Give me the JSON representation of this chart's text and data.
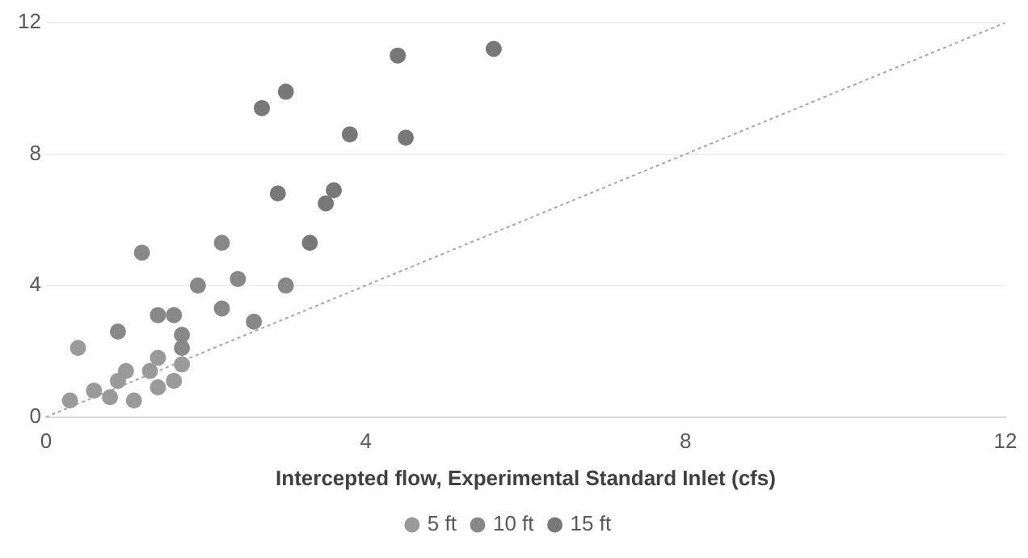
{
  "chart_data": {
    "type": "scatter",
    "xlabel": "Intercepted flow, Experimental Standard Inlet (cfs)",
    "xlim": [
      0,
      12
    ],
    "xticks": [
      0,
      4,
      8,
      12
    ],
    "ylim": [
      0,
      12
    ],
    "yticks": [
      0,
      4,
      8,
      12
    ],
    "grid": "y",
    "legend": "bottom",
    "marker": "circle",
    "series": [
      {
        "name": "5 ft",
        "color": "#9a9a9a",
        "x": [
          0.3,
          0.6,
          0.8,
          1.1,
          1.4,
          1.6,
          1.0,
          1.3,
          0.9,
          0.4,
          1.7,
          1.4
        ],
        "values": [
          0.5,
          0.8,
          0.6,
          0.5,
          0.9,
          1.1,
          1.4,
          1.4,
          1.1,
          2.1,
          1.6,
          1.8
        ]
      },
      {
        "name": "10 ft",
        "color": "#888888",
        "x": [
          0.9,
          1.7,
          1.7,
          1.4,
          1.6,
          2.2,
          2.6,
          1.9,
          2.4,
          3.0,
          1.2,
          2.2
        ],
        "values": [
          2.6,
          2.5,
          2.1,
          3.1,
          3.1,
          3.3,
          2.9,
          4.0,
          4.2,
          4.0,
          5.0,
          5.3
        ]
      },
      {
        "name": "15 ft",
        "color": "#787878",
        "x": [
          3.3,
          2.9,
          3.5,
          3.6,
          3.8,
          4.5,
          2.7,
          3.0,
          4.4,
          5.6
        ],
        "values": [
          5.3,
          6.8,
          6.5,
          6.9,
          8.6,
          8.5,
          9.4,
          9.9,
          11.0,
          11.2
        ]
      },
      {
        "type": "line",
        "color": "#a6a6a6",
        "line_style": "dotted",
        "marker": "none",
        "x": [
          0,
          12
        ],
        "values": [
          0,
          12
        ]
      }
    ]
  }
}
